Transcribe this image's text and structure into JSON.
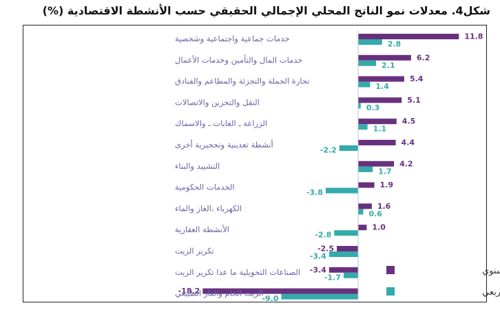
{
  "chart_data": {
    "type": "bar",
    "orientation": "horizontal",
    "title": "شكل4. معدلات نمو الناتج المحلي الإجمالي الحقيقي حسب الأنشطة الاقتصادية (%)",
    "categories": [
      "خدمات جماعية واجتماعية وشخصية",
      "خدمات المال والتأمين وخدمات الأعمال",
      "تجارة الجملة والتجزئة والمطاعم والفنادق",
      "النقل والتخزين والاتصالات",
      "الزراعة ـ الغابات ـ والاسماك",
      "أنشطة تعدينية وتحجيرية أخرى",
      "التشييد والبناء",
      "الخدمات الحكومية",
      "الكهرباء ،الغاز والماء",
      "الأنشطة العقارية",
      "تكرير الزيت",
      "الصناعات التحويلية ما عدا تكرير الزيت",
      "الزيت الخام والغاز الطبيعي"
    ],
    "series": [
      {
        "name": "على أساس سنوي",
        "color": "#68317e",
        "values": [
          11.8,
          6.2,
          5.4,
          5.1,
          4.5,
          4.4,
          4.2,
          1.9,
          1.6,
          1.0,
          -2.5,
          -3.4,
          -18.2
        ]
      },
      {
        "name": "على أساس ربعي",
        "color": "#35aaaa",
        "values": [
          2.8,
          2.1,
          1.4,
          0.3,
          1.1,
          -2.2,
          1.7,
          -3.8,
          0.6,
          -2.8,
          -3.4,
          -1.7,
          -9.0
        ]
      }
    ],
    "value_labels": {
      "annual": [
        "11.8",
        "6.2",
        "5.4",
        "5.1",
        "4.5",
        "4.4",
        "4.2",
        "1.9",
        "1.6",
        "1.0",
        "-2.5",
        "-3.4",
        "-18.2"
      ],
      "quarterly": [
        "2.8",
        "2.1",
        "1.4",
        "0.3",
        "1.1",
        "-2.2",
        "1.7",
        "-3.8",
        "0.6",
        "-2.8",
        "-3.4",
        "-1.7",
        "-9.0"
      ]
    },
    "legend_position": "bottom-right",
    "grid": false
  }
}
